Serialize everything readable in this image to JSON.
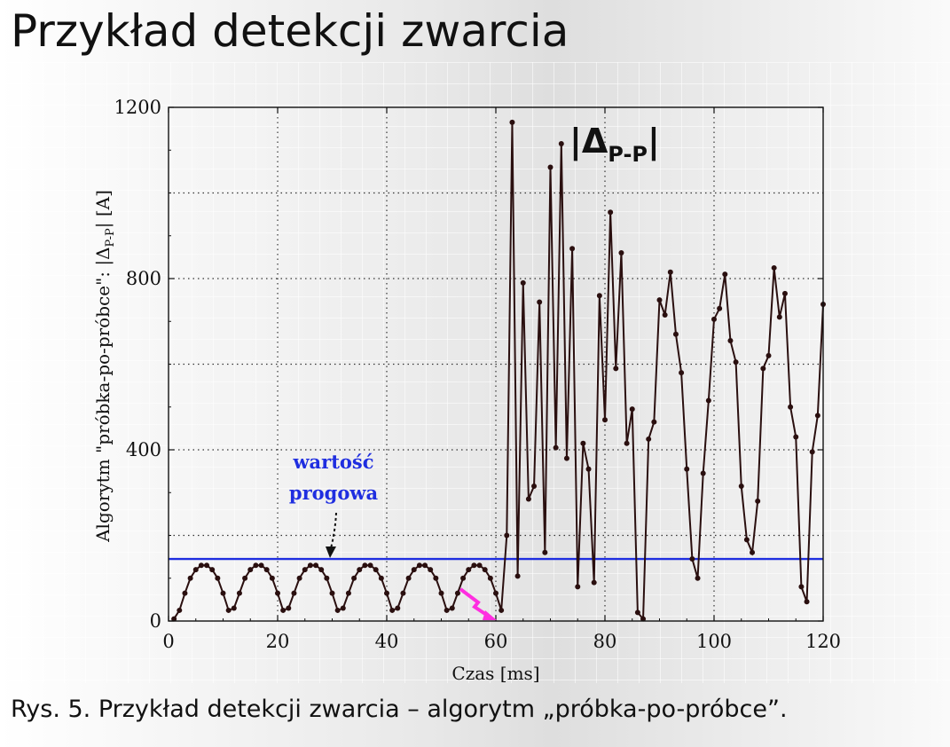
{
  "slide": {
    "title": "Przykład detekcji zwarcia",
    "caption": "Rys. 5. Przykład detekcji zwarcia – algorytm „próbka-po-próbce”."
  },
  "chart_data": {
    "type": "line",
    "xlabel": "Czas [ms]",
    "ylabel_parts": {
      "main": "Algorytm \"próbka-po-próbce\": |Δ",
      "sub": "P-P",
      "end": "| [A]"
    },
    "xlim": [
      0,
      120
    ],
    "ylim": [
      0,
      1200
    ],
    "xticks": [
      0,
      20,
      40,
      60,
      80,
      100,
      120
    ],
    "yticks": [
      0,
      400,
      800,
      1200
    ],
    "grid": true,
    "colors": {
      "series": "#2a0f0f",
      "threshold": "#1f2ee0",
      "annotation": "#1f2ee0",
      "fault_marker": "#ff2ee0"
    },
    "series_label": {
      "main": "|Δ",
      "sub": "P-P",
      "end": "|"
    },
    "annotation": {
      "line1": "wartość",
      "line2": "progowa"
    },
    "threshold": {
      "y": 145
    },
    "series": [
      {
        "x": [
          1,
          2,
          3,
          4,
          5,
          6,
          7,
          8,
          9,
          10,
          11,
          12,
          13,
          14,
          15,
          16,
          17,
          18,
          19,
          20,
          21,
          22,
          23,
          24,
          25,
          26,
          27,
          28,
          29,
          30,
          31,
          32,
          33,
          34,
          35,
          36,
          37,
          38,
          39,
          40,
          41,
          42,
          43,
          44,
          45,
          46,
          47,
          48,
          49,
          50,
          51,
          52,
          53,
          54,
          55,
          56,
          57,
          58,
          59,
          60,
          61,
          62,
          63,
          64,
          65,
          66,
          67,
          68,
          69,
          70,
          71,
          72,
          73,
          74,
          75,
          76,
          77,
          78,
          79,
          80,
          81,
          82,
          83,
          84,
          85,
          86,
          87,
          88,
          89,
          90,
          91,
          92,
          93,
          94,
          95,
          96,
          97,
          98,
          99,
          100,
          101,
          102,
          103,
          104,
          105,
          106,
          107,
          108,
          109,
          110,
          111,
          112,
          113,
          114,
          115,
          116,
          117,
          118,
          119,
          120
        ],
        "y": [
          5,
          25,
          65,
          100,
          120,
          130,
          130,
          120,
          100,
          65,
          25,
          30,
          65,
          100,
          120,
          130,
          130,
          120,
          100,
          65,
          25,
          30,
          65,
          100,
          120,
          130,
          130,
          120,
          100,
          65,
          25,
          30,
          65,
          100,
          120,
          130,
          130,
          120,
          100,
          65,
          25,
          30,
          65,
          100,
          120,
          130,
          130,
          120,
          100,
          65,
          25,
          30,
          65,
          100,
          120,
          130,
          130,
          120,
          100,
          65,
          25,
          200,
          1165,
          105,
          790,
          285,
          315,
          745,
          160,
          1060,
          405,
          1115,
          380,
          870,
          80,
          415,
          355,
          90,
          760,
          470,
          955,
          590,
          860,
          415,
          495,
          20,
          5,
          425,
          465,
          750,
          715,
          815,
          670,
          580,
          355,
          145,
          100,
          345,
          515,
          705,
          730,
          810,
          655,
          605,
          315,
          190,
          160,
          280,
          590,
          620,
          825,
          710,
          765,
          500,
          430,
          80,
          45,
          395,
          480,
          740
        ]
      }
    ]
  }
}
